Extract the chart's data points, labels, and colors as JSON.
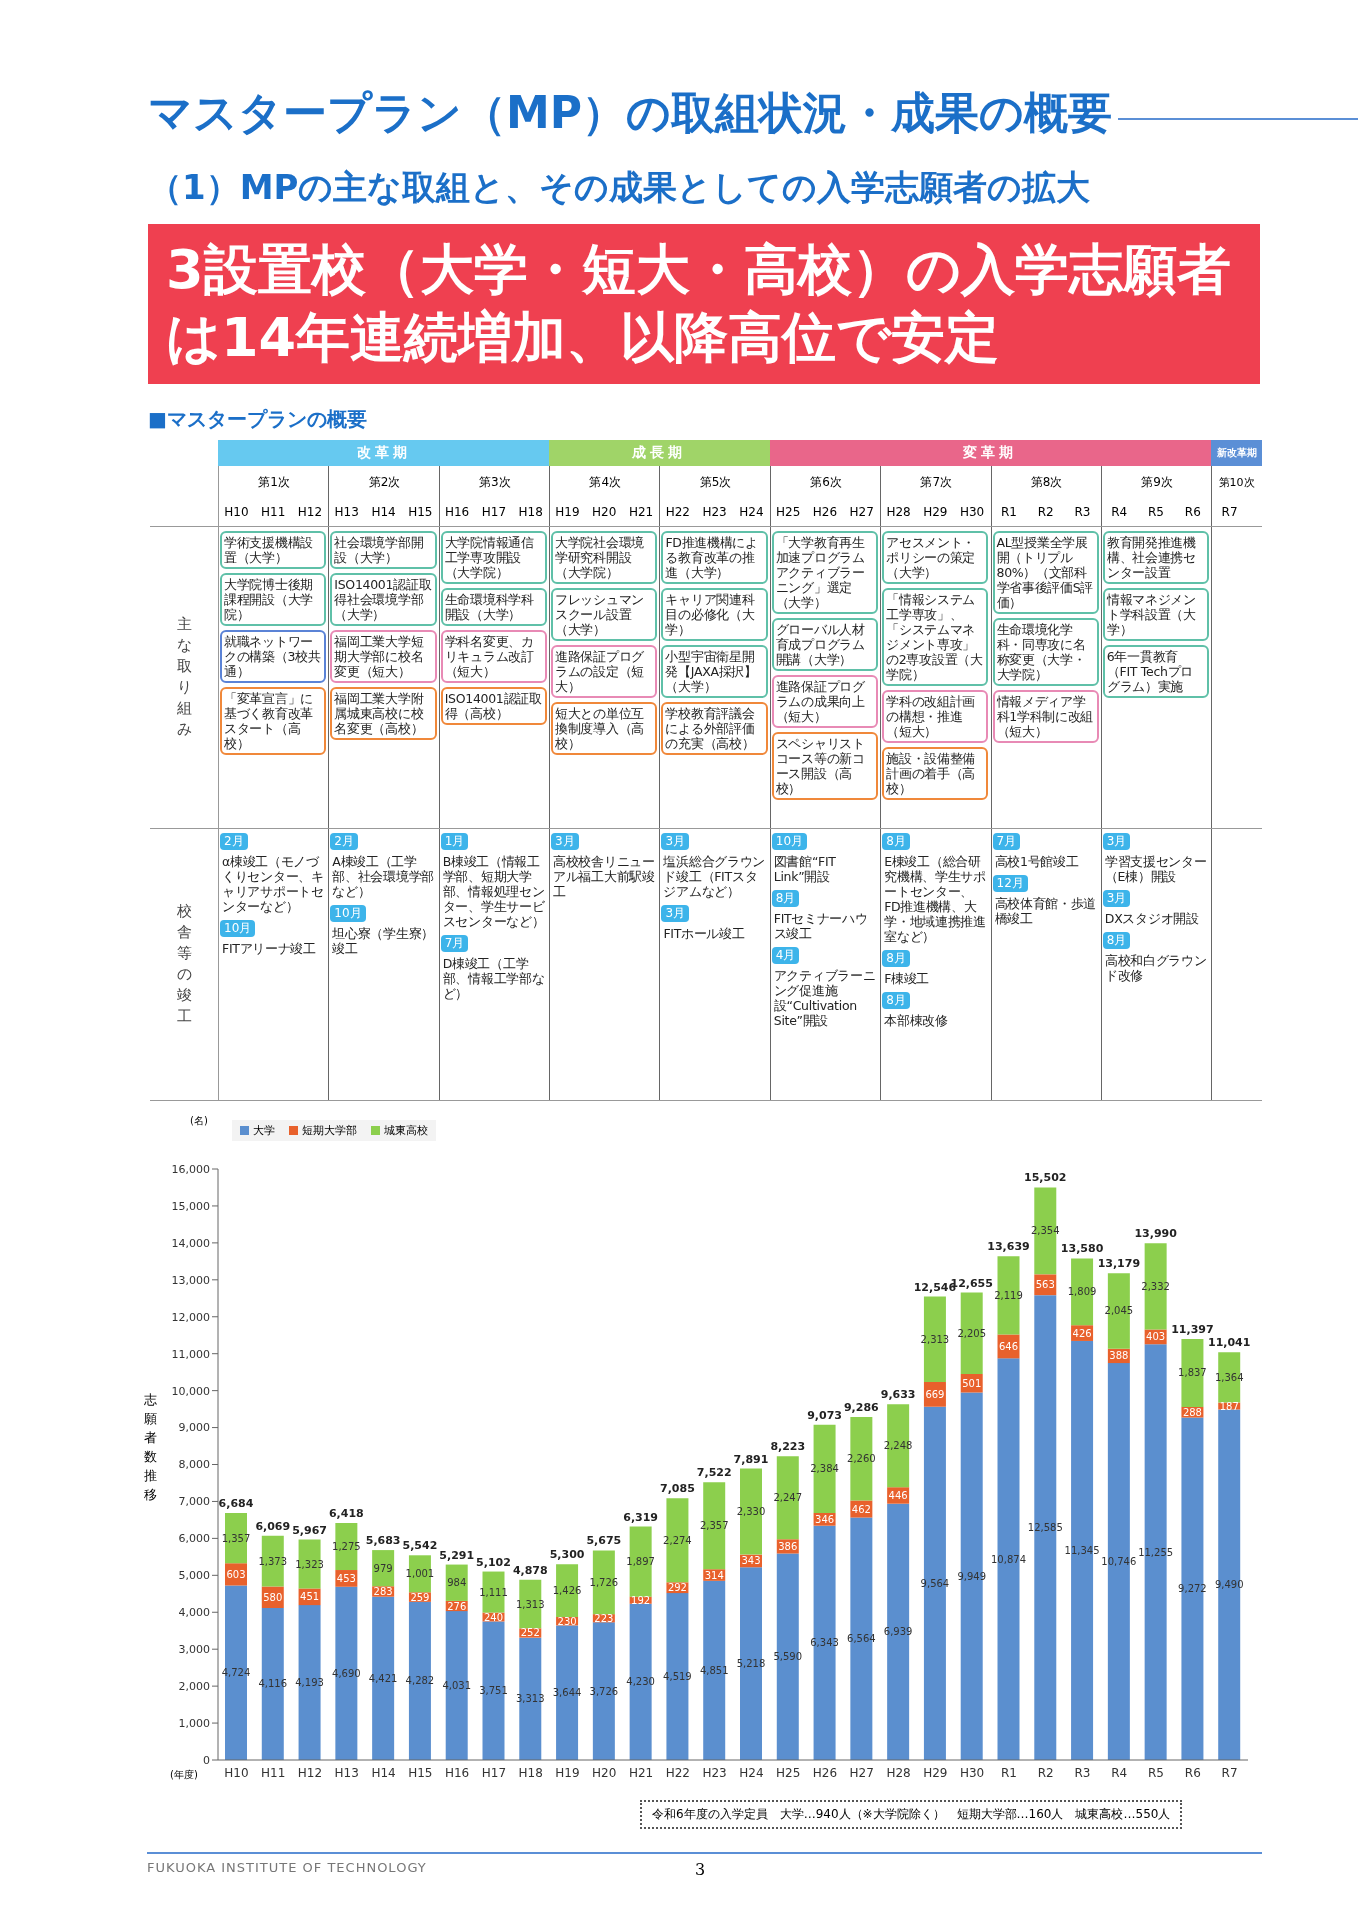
{
  "chart_data": {
    "type": "bar",
    "stacked": true,
    "title": "マスタープラン（MP）の取組状況・成果の概要",
    "subtitle": "（1）MPの主な取組と、その成果としての入学志願者の拡大",
    "xlabel": "(年度)",
    "ylabel": "志願者数推移",
    "categories": [
      "H10",
      "H11",
      "H12",
      "H13",
      "H14",
      "H15",
      "H16",
      "H17",
      "H18",
      "H19",
      "H20",
      "H21",
      "H22",
      "H23",
      "H24",
      "H25",
      "H26",
      "H27",
      "H28",
      "H29",
      "H30",
      "R1",
      "R2",
      "R3",
      "R4",
      "R5",
      "R6",
      "R7"
    ],
    "series": [
      {
        "name": "大学",
        "color": "#5b8fcf",
        "values": [
          4724,
          4116,
          4193,
          4690,
          4421,
          4282,
          4031,
          3751,
          3313,
          3644,
          3726,
          4230,
          4519,
          4851,
          5218,
          5590,
          6343,
          6564,
          6939,
          9564,
          9949,
          10874,
          12585,
          11345,
          10746,
          11255,
          9272,
          9490
        ],
        "value_labels": [
          "4,724",
          "4,116",
          "4,193",
          "4,690",
          "4,421",
          "4,282",
          "4,031",
          "3,751",
          "3,313",
          "3,644",
          "3,726",
          "4,230",
          "4,519",
          "4,851",
          "5,218",
          "5,590",
          "6,343",
          "6,564",
          "6,939",
          "9,564",
          "9,949",
          "10,874",
          "12,585",
          "11,345",
          "10,746",
          "11,255",
          "9,272",
          "9,490"
        ]
      },
      {
        "name": "短期大学部",
        "color": "#e8612c",
        "values": [
          603,
          580,
          451,
          453,
          283,
          259,
          276,
          240,
          252,
          230,
          223,
          192,
          292,
          314,
          343,
          386,
          346,
          462,
          446,
          669,
          501,
          646,
          563,
          426,
          388,
          403,
          288,
          187
        ],
        "value_labels": [
          "603",
          "580",
          "451",
          "453",
          "283",
          "259",
          "276",
          "240",
          "252",
          "230",
          "223",
          "192",
          "292",
          "314",
          "343",
          "386",
          "346",
          "462",
          "446",
          "669",
          "501",
          "646",
          "563",
          "426",
          "388",
          "403",
          "288",
          "187"
        ]
      },
      {
        "name": "城東高校",
        "color": "#8ccf4d",
        "values": [
          1357,
          1373,
          1323,
          1275,
          979,
          1001,
          984,
          1111,
          1313,
          1426,
          1726,
          1897,
          2274,
          2357,
          2330,
          2247,
          2384,
          2260,
          2248,
          2313,
          2205,
          2119,
          2354,
          1809,
          2045,
          2332,
          1837,
          1364
        ],
        "value_labels": [
          "1,357",
          "1,373",
          "1,323",
          "1,275",
          "979",
          "1,001",
          "984",
          "1,111",
          "1,313",
          "1,426",
          "1,726",
          "1,897",
          "2,274",
          "2,357",
          "2,330",
          "2,247",
          "2,384",
          "2,260",
          "2,248",
          "2,313",
          "2,205",
          "2,119",
          "2,354",
          "1,809",
          "2,045",
          "2,332",
          "1,837",
          "1,364"
        ]
      }
    ],
    "totals": [
      "6,684",
      "6,069",
      "5,967",
      "6,418",
      "5,683",
      "5,542",
      "5,291",
      "5,102",
      "4,878",
      "5,300",
      "5,675",
      "6,319",
      "7,085",
      "7,522",
      "7,891",
      "8,223",
      "9,073",
      "9,286",
      "9,633",
      "12,546",
      "12,655",
      "13,639",
      "15,502",
      "13,580",
      "13,179",
      "13,990",
      "11,397",
      "11,041"
    ],
    "ylim": [
      0,
      16000
    ],
    "yticks": [
      0,
      {
        "value": 1000,
        "label": "1,000"
      },
      {
        "value": 2000,
        "label": "2,000"
      },
      {
        "value": 3000,
        "label": "3,000"
      },
      {
        "value": 4000,
        "label": "4,000"
      },
      {
        "value": 5000,
        "label": "5,000"
      },
      {
        "value": 6000,
        "label": "6,000"
      },
      {
        "value": 7000,
        "label": "7,000"
      },
      {
        "value": 8000,
        "label": "8,000"
      },
      {
        "value": 9000,
        "label": "9,000"
      },
      {
        "value": 10000,
        "label": "10,000"
      },
      {
        "value": 11000,
        "label": "11,000"
      },
      {
        "value": 12000,
        "label": "12,000"
      },
      {
        "value": 13000,
        "label": "13,000"
      },
      {
        "value": 14000,
        "label": "14,000"
      },
      {
        "value": 15000,
        "label": "15,000"
      },
      {
        "value": 16000,
        "label": "16,000"
      }
    ],
    "legend": "top left",
    "annotations": [
      "3設置校（大学・短大・高校）の入学志願者は14年連続増加、以降高位で安定",
      "■マスタープランの概要",
      "改革期",
      "成長期",
      "変革期",
      "新改革期",
      "第1次",
      "第2次",
      "第3次",
      "第4次",
      "第5次",
      "第6次",
      "第7次",
      "第8次",
      "第9次",
      "第10次",
      "主な取り組み",
      "校舎等の竣工",
      "学術支援機構設置（大学）",
      "大学院博士後期課程開設（大学院）",
      "就職ネットワークの構築（3校共通）",
      "「変革宣言」に基づく教育改革スタート（高校）",
      "社会環境学部開設（大学）",
      "ISO14001認証取得社会環境学部（大学）",
      "福岡工業大学短期大学部に校名変更（短大）",
      "福岡工業大学附属城東高校に校名変更（高校）",
      "大学院情報通信工学専攻開設（大学院）",
      "生命環境科学科開設（大学）",
      "学科名変更、カリキュラム改訂（短大）",
      "ISO14001認証取得（高校）",
      "大学院社会環境学研究科開設（大学院）",
      "フレッシュマンスクール設置（大学）",
      "進路保証プログラムの設定（短大）",
      "短大との単位互換制度導入（高校）",
      "FD推進機構による教育改革の推進（大学）",
      "キャリア関連科目の必修化（大学）",
      "小型宇宙衛星開発【JAXA採択】（大学）",
      "学校教育評議会による外部評価の充実（高校）",
      "「大学教育再生加速プログラムアクティブラーニング」選定（大学）",
      "グローバル人材育成プログラム開講（大学）",
      "進路保証プログラムの成果向上（短大）",
      "スペシャリストコース等の新コース開設（高校）",
      "アセスメント・ポリシーの策定（大学）",
      "「情報システム工学専攻」、「システムマネジメント専攻」の2専攻設置（大学院）",
      "学科の改組計画の構想・推進（短大）",
      "施設・設備整備計画の着手（高校）",
      "AL型授業全学展開（トリプル80%）（文部科学省事後評価S評価）",
      "生命環境化学科・同専攻に名称変更（大学・大学院）",
      "情報メディア学科1学科制に改組（短大）",
      "教育開発推進機構、社会連携センター設置",
      "情報マネジメント学科設置（大学）",
      "6年一貫教育（FIT Techプログラム）実施",
      "2月",
      "α棟竣工（モノづくりセンター、キャリアサポートセンターなど）",
      "10月",
      "FITアリーナ竣工",
      "2月",
      "A棟竣工（工学部、社会環境学部など）",
      "10月",
      "坦心寮（学生寮）竣工",
      "1月",
      "B棟竣工（情報工学部、短期大学部、情報処理センター、学生サービスセンターなど）",
      "7月",
      "D棟竣工（工学部、情報工学部など）",
      "3月",
      "高校校舎リニューアル福工大前駅竣工",
      "3月",
      "塩浜総合グラウンド竣工（FITスタジアムなど）",
      "3月",
      "FITホール竣工",
      "10月",
      "図書館“FIT Link”開設",
      "8月",
      "FITセミナーハウス竣工",
      "4月",
      "アクティブラーニング促進施設“Cultivation Site”開設",
      "8月",
      "E棟竣工（総合研究機構、学生サポートセンター、FD推進機構、大学・地域連携推進室など）",
      "8月",
      "F棟竣工",
      "8月",
      "本部棟改修",
      "7月",
      "高校1号館竣工",
      "12月",
      "高校体育館・歩道橋竣工",
      "3月",
      "学習支援センター（E棟）開設",
      "3月",
      "DXスタジオ開設",
      "8月",
      "高校和白グラウンド改修",
      "(名)",
      "令和6年度の入学定員　大学…940人（※大学院除く）　短期大学部…160人　城東高校…550人",
      "FUKUOKA INSTITUTE OF TECHNOLOGY",
      "3"
    ]
  }
}
